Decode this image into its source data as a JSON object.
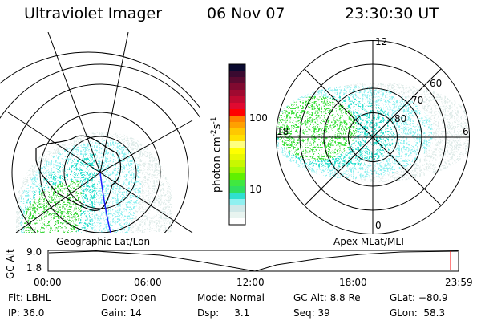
{
  "header": {
    "instrument": "Ultraviolet Imager",
    "date": "06 Nov 07",
    "time": "23:30:30 UT"
  },
  "colorbar": {
    "label": "photon cm",
    "exp1": "-2",
    "unit2": "s",
    "exp2": "-1",
    "ticks": [
      "100",
      "10"
    ],
    "colors": [
      "#0a0a30",
      "#3a0a30",
      "#5a0a30",
      "#800a30",
      "#a00a30",
      "#c00a30",
      "#e00a30",
      "#ff0000",
      "#ff8000",
      "#ffa000",
      "#ffc800",
      "#ffe000",
      "#ffff80",
      "#ffff00",
      "#e8f800",
      "#c8f800",
      "#a0f800",
      "#60f000",
      "#40e840",
      "#30e060",
      "#30e0d0",
      "#90f0f0",
      "#d0e8e8",
      "#e8f4f0",
      "#ffffff"
    ]
  },
  "left_map": {
    "label": "Geographic Lat/Lon"
  },
  "right_map": {
    "label": "Apex MLat/MLT",
    "mlt_labels": [
      "12",
      "6",
      "0",
      "18"
    ],
    "lat_labels": [
      "80",
      "70",
      "60"
    ]
  },
  "alt_plot": {
    "ylabel": "GC Alt",
    "yticks": [
      "9.0",
      "1.8"
    ],
    "xticks": [
      "00:00",
      "06:00",
      "12:00",
      "18:00",
      "23:59"
    ],
    "marker_color": "#ff0000"
  },
  "info": {
    "row1": [
      "Flt: LBHL",
      "Door: Open",
      "Mode: Normal",
      "GC Alt: 8.8 Re",
      "GLat: −80.9"
    ],
    "row2": [
      "IP: 36.0",
      "Gain: 14",
      "Dsp:     3.1",
      "Seq: 39",
      "GLon:  58.3"
    ]
  }
}
